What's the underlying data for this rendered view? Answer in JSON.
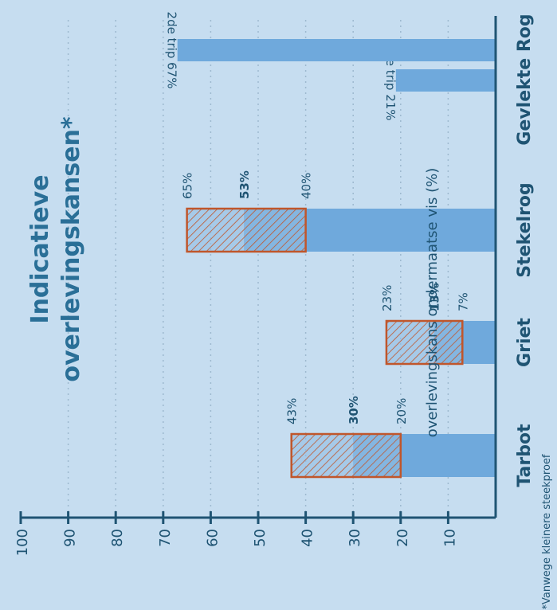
{
  "chart_data": {
    "type": "bar",
    "orientation": "horizontal",
    "rotation": "page rotated 90 degrees counter-clockwise",
    "title": [
      "Indicatieve",
      "overlevingskansen*"
    ],
    "axis_label": "overlevingskans ondermaatse vis (%)",
    "axis_range": [
      0,
      100
    ],
    "ticks": [
      "10",
      "20",
      "30",
      "40",
      "50",
      "60",
      "70",
      "80",
      "90",
      "100"
    ],
    "grid": true,
    "footnote": "*Vanwege kleinere steekproef",
    "colors": {
      "background": "#c6ddf0",
      "bar": "#6fa9dc",
      "range_border": "#c0562b",
      "axis": "#1f5473",
      "text": "#1f5473",
      "title": "#2a6f97",
      "grid": "#9db9cf"
    },
    "species": [
      {
        "name": "Tarbot",
        "low": 20,
        "mid": 30,
        "high": 43,
        "labels": {
          "low": "20%",
          "mid": "30%",
          "high": "43%"
        }
      },
      {
        "name": "Griet",
        "low": 7,
        "mid": 13,
        "high": 23,
        "labels": {
          "low": "7%",
          "mid": "13%",
          "high": "23%"
        }
      },
      {
        "name": "Stekelrog",
        "low": 40,
        "mid": 53,
        "high": 65,
        "labels": {
          "low": "40%",
          "mid": "53%",
          "high": "65%"
        }
      },
      {
        "name": "Gevlekte Rog",
        "trips": [
          {
            "value": 21,
            "label": "1ste trip 21%"
          },
          {
            "value": 67,
            "label": "2de trip 67%"
          }
        ]
      }
    ]
  }
}
